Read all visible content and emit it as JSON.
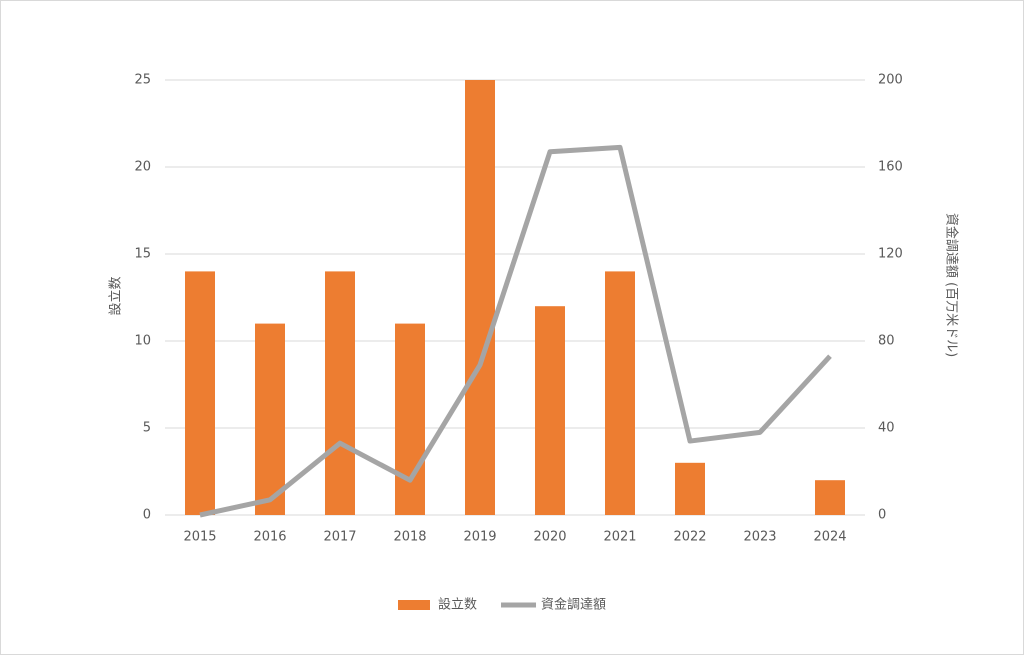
{
  "chart_data": {
    "type": "bar",
    "categories": [
      "2015",
      "2016",
      "2017",
      "2018",
      "2019",
      "2020",
      "2021",
      "2022",
      "2023",
      "2024"
    ],
    "series": [
      {
        "name": "設立数",
        "type": "bar",
        "color": "#ed7d31",
        "values": [
          14,
          11,
          14,
          11,
          25,
          12,
          14,
          3,
          0,
          2
        ]
      },
      {
        "name": "資金調達額",
        "type": "line",
        "axis": "y2",
        "color": "#a5a5a5",
        "values": [
          0,
          7,
          33,
          16,
          69,
          167,
          169,
          34,
          38,
          73
        ]
      }
    ],
    "ylabel": "設立数",
    "y2label": "資金調達額 (百万米ドル)",
    "ylim": [
      0,
      25
    ],
    "yticks": [
      0,
      5,
      10,
      15,
      20,
      25
    ],
    "y2lim": [
      0,
      200
    ],
    "y2ticks": [
      0,
      40,
      80,
      120,
      160,
      200
    ],
    "grid": true,
    "legend": "bottom"
  }
}
